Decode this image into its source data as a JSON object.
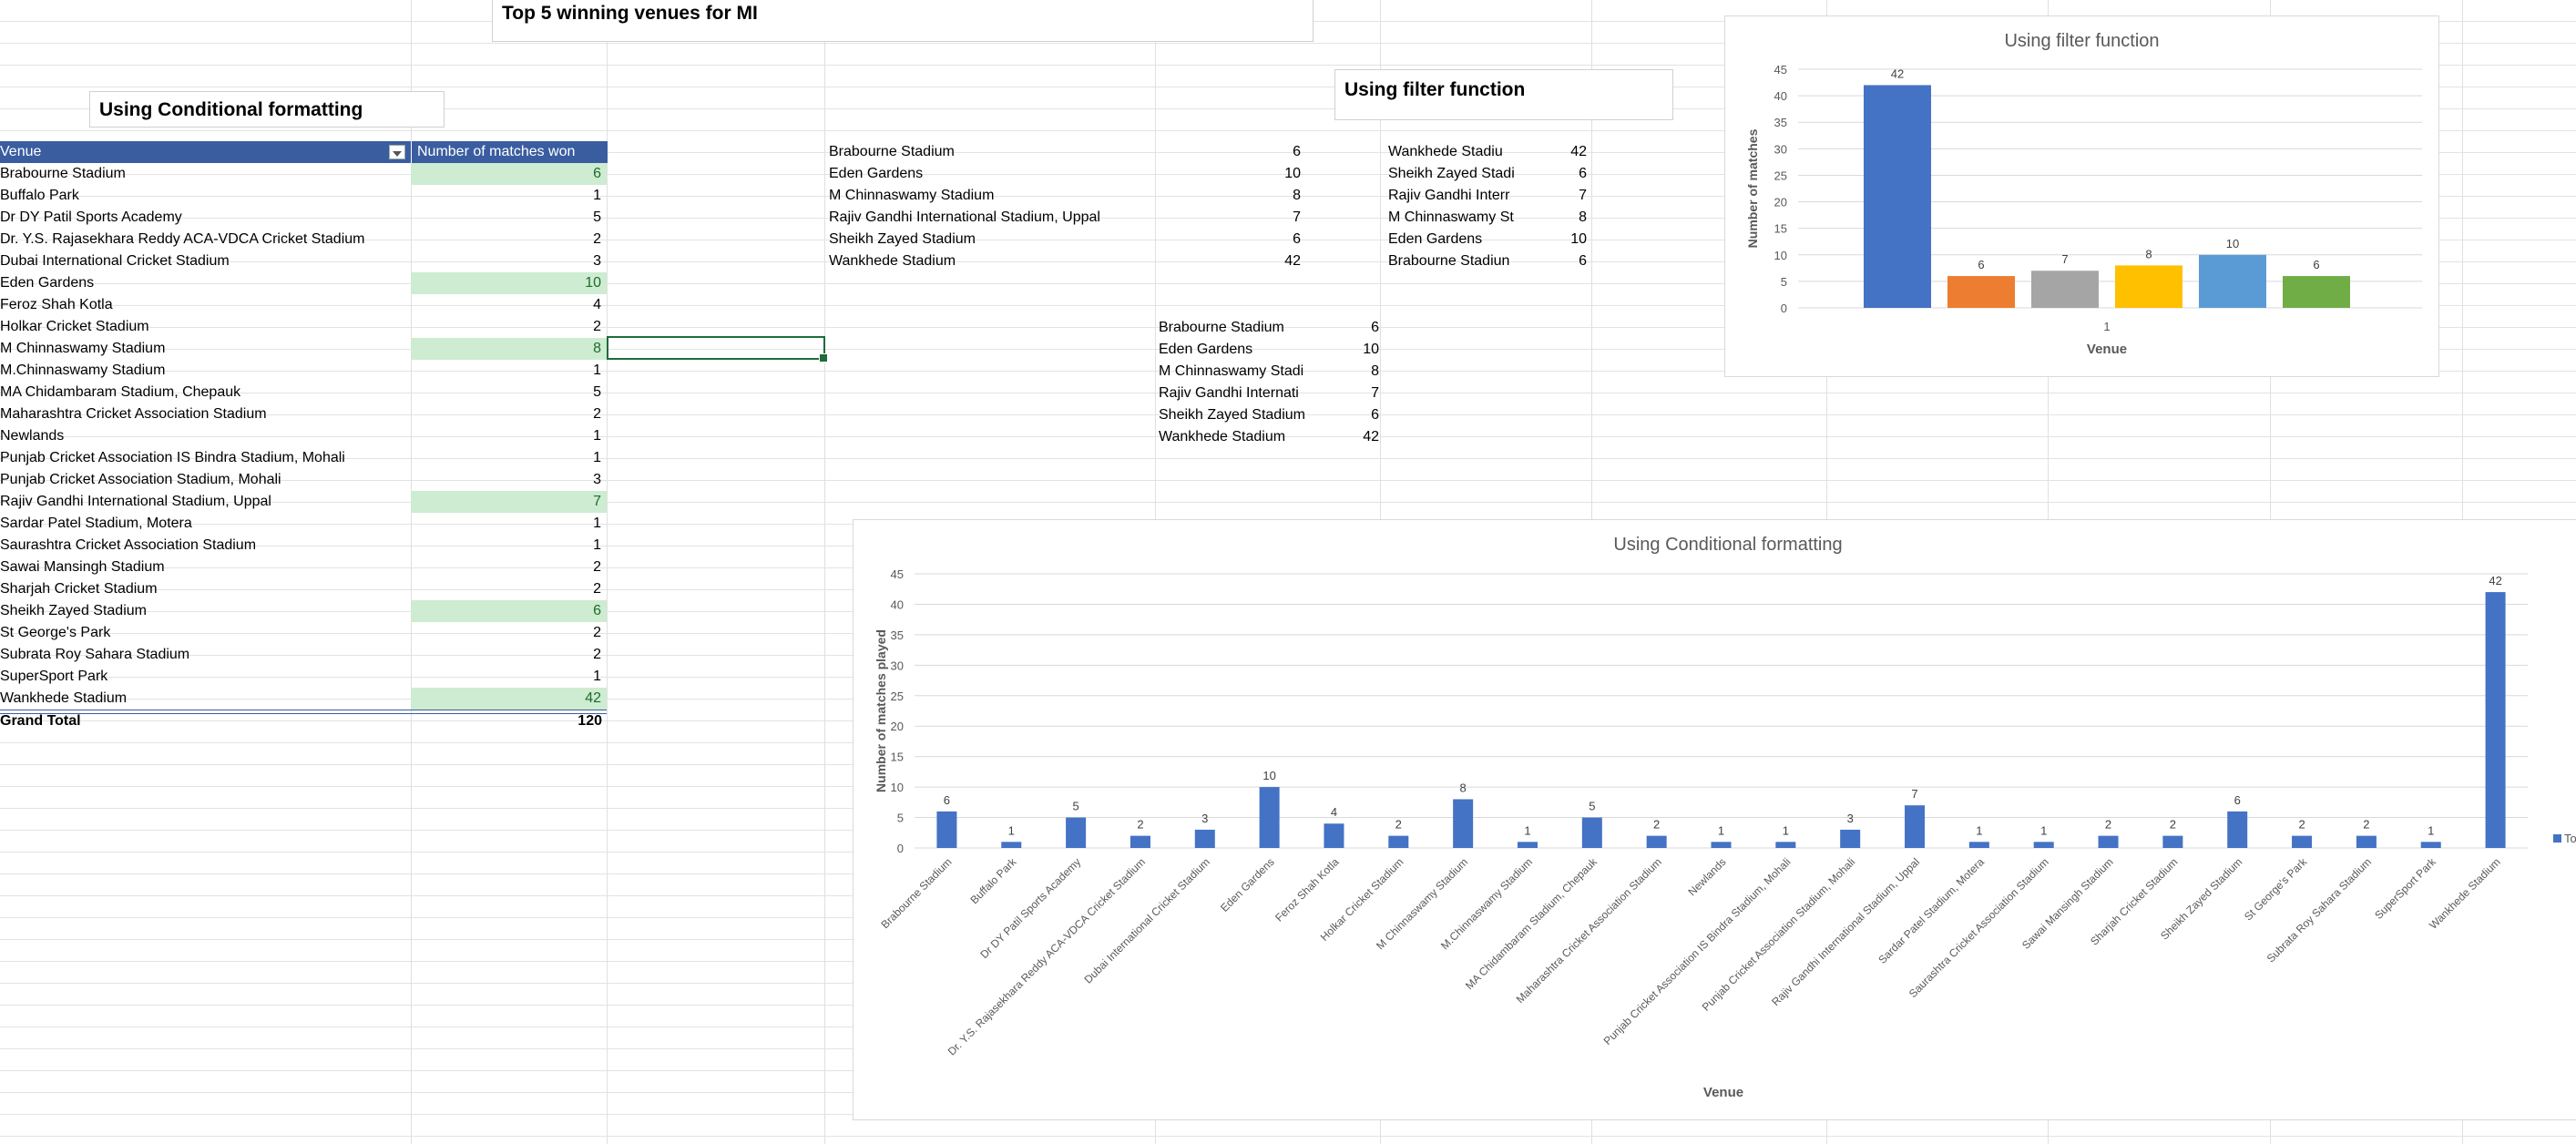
{
  "titles": {
    "top5": "Top 5 winning venues for MI",
    "cond_fmt": "Using Conditional formatting",
    "filter_fn": "Using filter function"
  },
  "pivot": {
    "header_venue": "Venue",
    "header_count": "Number of matches won",
    "rows": [
      {
        "venue": "Brabourne Stadium",
        "count": "6",
        "highlight": true
      },
      {
        "venue": "Buffalo Park",
        "count": "1",
        "highlight": false
      },
      {
        "venue": "Dr DY Patil Sports Academy",
        "count": "5",
        "highlight": false
      },
      {
        "venue": "Dr. Y.S. Rajasekhara Reddy ACA-VDCA Cricket Stadium",
        "count": "2",
        "highlight": false
      },
      {
        "venue": "Dubai International Cricket Stadium",
        "count": "3",
        "highlight": false
      },
      {
        "venue": "Eden Gardens",
        "count": "10",
        "highlight": true
      },
      {
        "venue": "Feroz Shah Kotla",
        "count": "4",
        "highlight": false
      },
      {
        "venue": "Holkar Cricket Stadium",
        "count": "2",
        "highlight": false
      },
      {
        "venue": "M Chinnaswamy Stadium",
        "count": "8",
        "highlight": true
      },
      {
        "venue": "M.Chinnaswamy Stadium",
        "count": "1",
        "highlight": false
      },
      {
        "venue": "MA Chidambaram Stadium, Chepauk",
        "count": "5",
        "highlight": false
      },
      {
        "venue": "Maharashtra Cricket Association Stadium",
        "count": "2",
        "highlight": false
      },
      {
        "venue": "Newlands",
        "count": "1",
        "highlight": false
      },
      {
        "venue": "Punjab Cricket Association IS Bindra Stadium, Mohali",
        "count": "1",
        "highlight": false
      },
      {
        "venue": "Punjab Cricket Association Stadium, Mohali",
        "count": "3",
        "highlight": false
      },
      {
        "venue": "Rajiv Gandhi International Stadium, Uppal",
        "count": "7",
        "highlight": true
      },
      {
        "venue": "Sardar Patel Stadium, Motera",
        "count": "1",
        "highlight": false
      },
      {
        "venue": "Saurashtra Cricket Association Stadium",
        "count": "1",
        "highlight": false
      },
      {
        "venue": "Sawai Mansingh Stadium",
        "count": "2",
        "highlight": false
      },
      {
        "venue": "Sharjah Cricket Stadium",
        "count": "2",
        "highlight": false
      },
      {
        "venue": "Sheikh Zayed Stadium",
        "count": "6",
        "highlight": true
      },
      {
        "venue": "St George's Park",
        "count": "2",
        "highlight": false
      },
      {
        "venue": "Subrata Roy Sahara Stadium",
        "count": "2",
        "highlight": false
      },
      {
        "venue": "SuperSport Park",
        "count": "1",
        "highlight": false
      },
      {
        "venue": "Wankhede Stadium",
        "count": "42",
        "highlight": true
      }
    ],
    "total_label": "Grand Total",
    "total_value": "120"
  },
  "list_mid": [
    {
      "venue": "Brabourne Stadium",
      "count": "6"
    },
    {
      "venue": "Eden Gardens",
      "count": "10"
    },
    {
      "venue": "M Chinnaswamy Stadium",
      "count": "8"
    },
    {
      "venue": "Rajiv Gandhi International Stadium, Uppal",
      "count": "7"
    },
    {
      "venue": "Sheikh Zayed Stadium",
      "count": "6"
    },
    {
      "venue": "Wankhede Stadium",
      "count": "42"
    }
  ],
  "list_lower": [
    {
      "venue": "Brabourne Stadium",
      "count": "6"
    },
    {
      "venue": "Eden Gardens",
      "count": "10"
    },
    {
      "venue": "M Chinnaswamy Stadi",
      "count": "8"
    },
    {
      "venue": "Rajiv Gandhi Internati",
      "count": "7"
    },
    {
      "venue": "Sheikh Zayed Stadium",
      "count": "6"
    },
    {
      "venue": "Wankhede Stadium",
      "count": "42"
    }
  ],
  "list_right": [
    {
      "venue": "Wankhede Stadiu",
      "count": "42"
    },
    {
      "venue": "Sheikh Zayed Stadi",
      "count": "6"
    },
    {
      "venue": "Rajiv Gandhi Interr",
      "count": "7"
    },
    {
      "venue": "M Chinnaswamy St",
      "count": "8"
    },
    {
      "venue": "Eden Gardens",
      "count": "10"
    },
    {
      "venue": "Brabourne Stadiun",
      "count": "6"
    }
  ],
  "chart_data": [
    {
      "type": "bar",
      "title": "Using filter function",
      "xlabel": "Venue",
      "ylabel": "Number of matches",
      "ylim": [
        0,
        45
      ],
      "yticks": [
        "0",
        "5",
        "10",
        "15",
        "20",
        "25",
        "30",
        "35",
        "40",
        "45"
      ],
      "categories": [
        "1"
      ],
      "grid": true,
      "series": [
        {
          "values": [
            42
          ],
          "color": "#4472c4",
          "label": "42"
        },
        {
          "values": [
            6
          ],
          "color": "#ed7d31",
          "label": "6"
        },
        {
          "values": [
            7
          ],
          "color": "#a5a5a5",
          "label": "7"
        },
        {
          "values": [
            8
          ],
          "color": "#ffc000",
          "label": "8"
        },
        {
          "values": [
            10
          ],
          "color": "#5b9bd5",
          "label": "10"
        },
        {
          "values": [
            6
          ],
          "color": "#70ad47",
          "label": "6"
        }
      ]
    },
    {
      "type": "bar",
      "title": "Using Conditional formatting",
      "xlabel": "Venue",
      "ylabel": "Number of matches played",
      "ylim": [
        0,
        45
      ],
      "yticks": [
        "0",
        "5",
        "10",
        "15",
        "20",
        "25",
        "30",
        "35",
        "40",
        "45"
      ],
      "grid": true,
      "color": "#4472c4",
      "legend_text": "Tot",
      "legend_position": "right",
      "categories": [
        "Brabourne Stadium",
        "Buffalo Park",
        "Dr DY Patil Sports Academy",
        "Dr. Y.S. Rajasekhara Reddy ACA-VDCA Cricket Stadium",
        "Dubai International Cricket Stadium",
        "Eden Gardens",
        "Feroz Shah Kotla",
        "Holkar Cricket Stadium",
        "M Chinnaswamy Stadium",
        "M.Chinnaswamy Stadium",
        "MA Chidambaram Stadium, Chepauk",
        "Maharashtra Cricket Association Stadium",
        "Newlands",
        "Punjab Cricket Association IS Bindra Stadium, Mohali",
        "Punjab Cricket Association Stadium, Mohali",
        "Rajiv Gandhi International Stadium, Uppal",
        "Sardar Patel Stadium, Motera",
        "Saurashtra Cricket Association Stadium",
        "Sawai Mansingh Stadium",
        "Sharjah Cricket Stadium",
        "Sheikh Zayed Stadium",
        "St George's Park",
        "Subrata Roy Sahara Stadium",
        "SuperSport Park",
        "Wankhede Stadium"
      ],
      "values": [
        6,
        1,
        5,
        2,
        3,
        10,
        4,
        2,
        8,
        1,
        5,
        2,
        1,
        1,
        3,
        7,
        1,
        1,
        2,
        2,
        6,
        2,
        2,
        1,
        42
      ]
    }
  ]
}
